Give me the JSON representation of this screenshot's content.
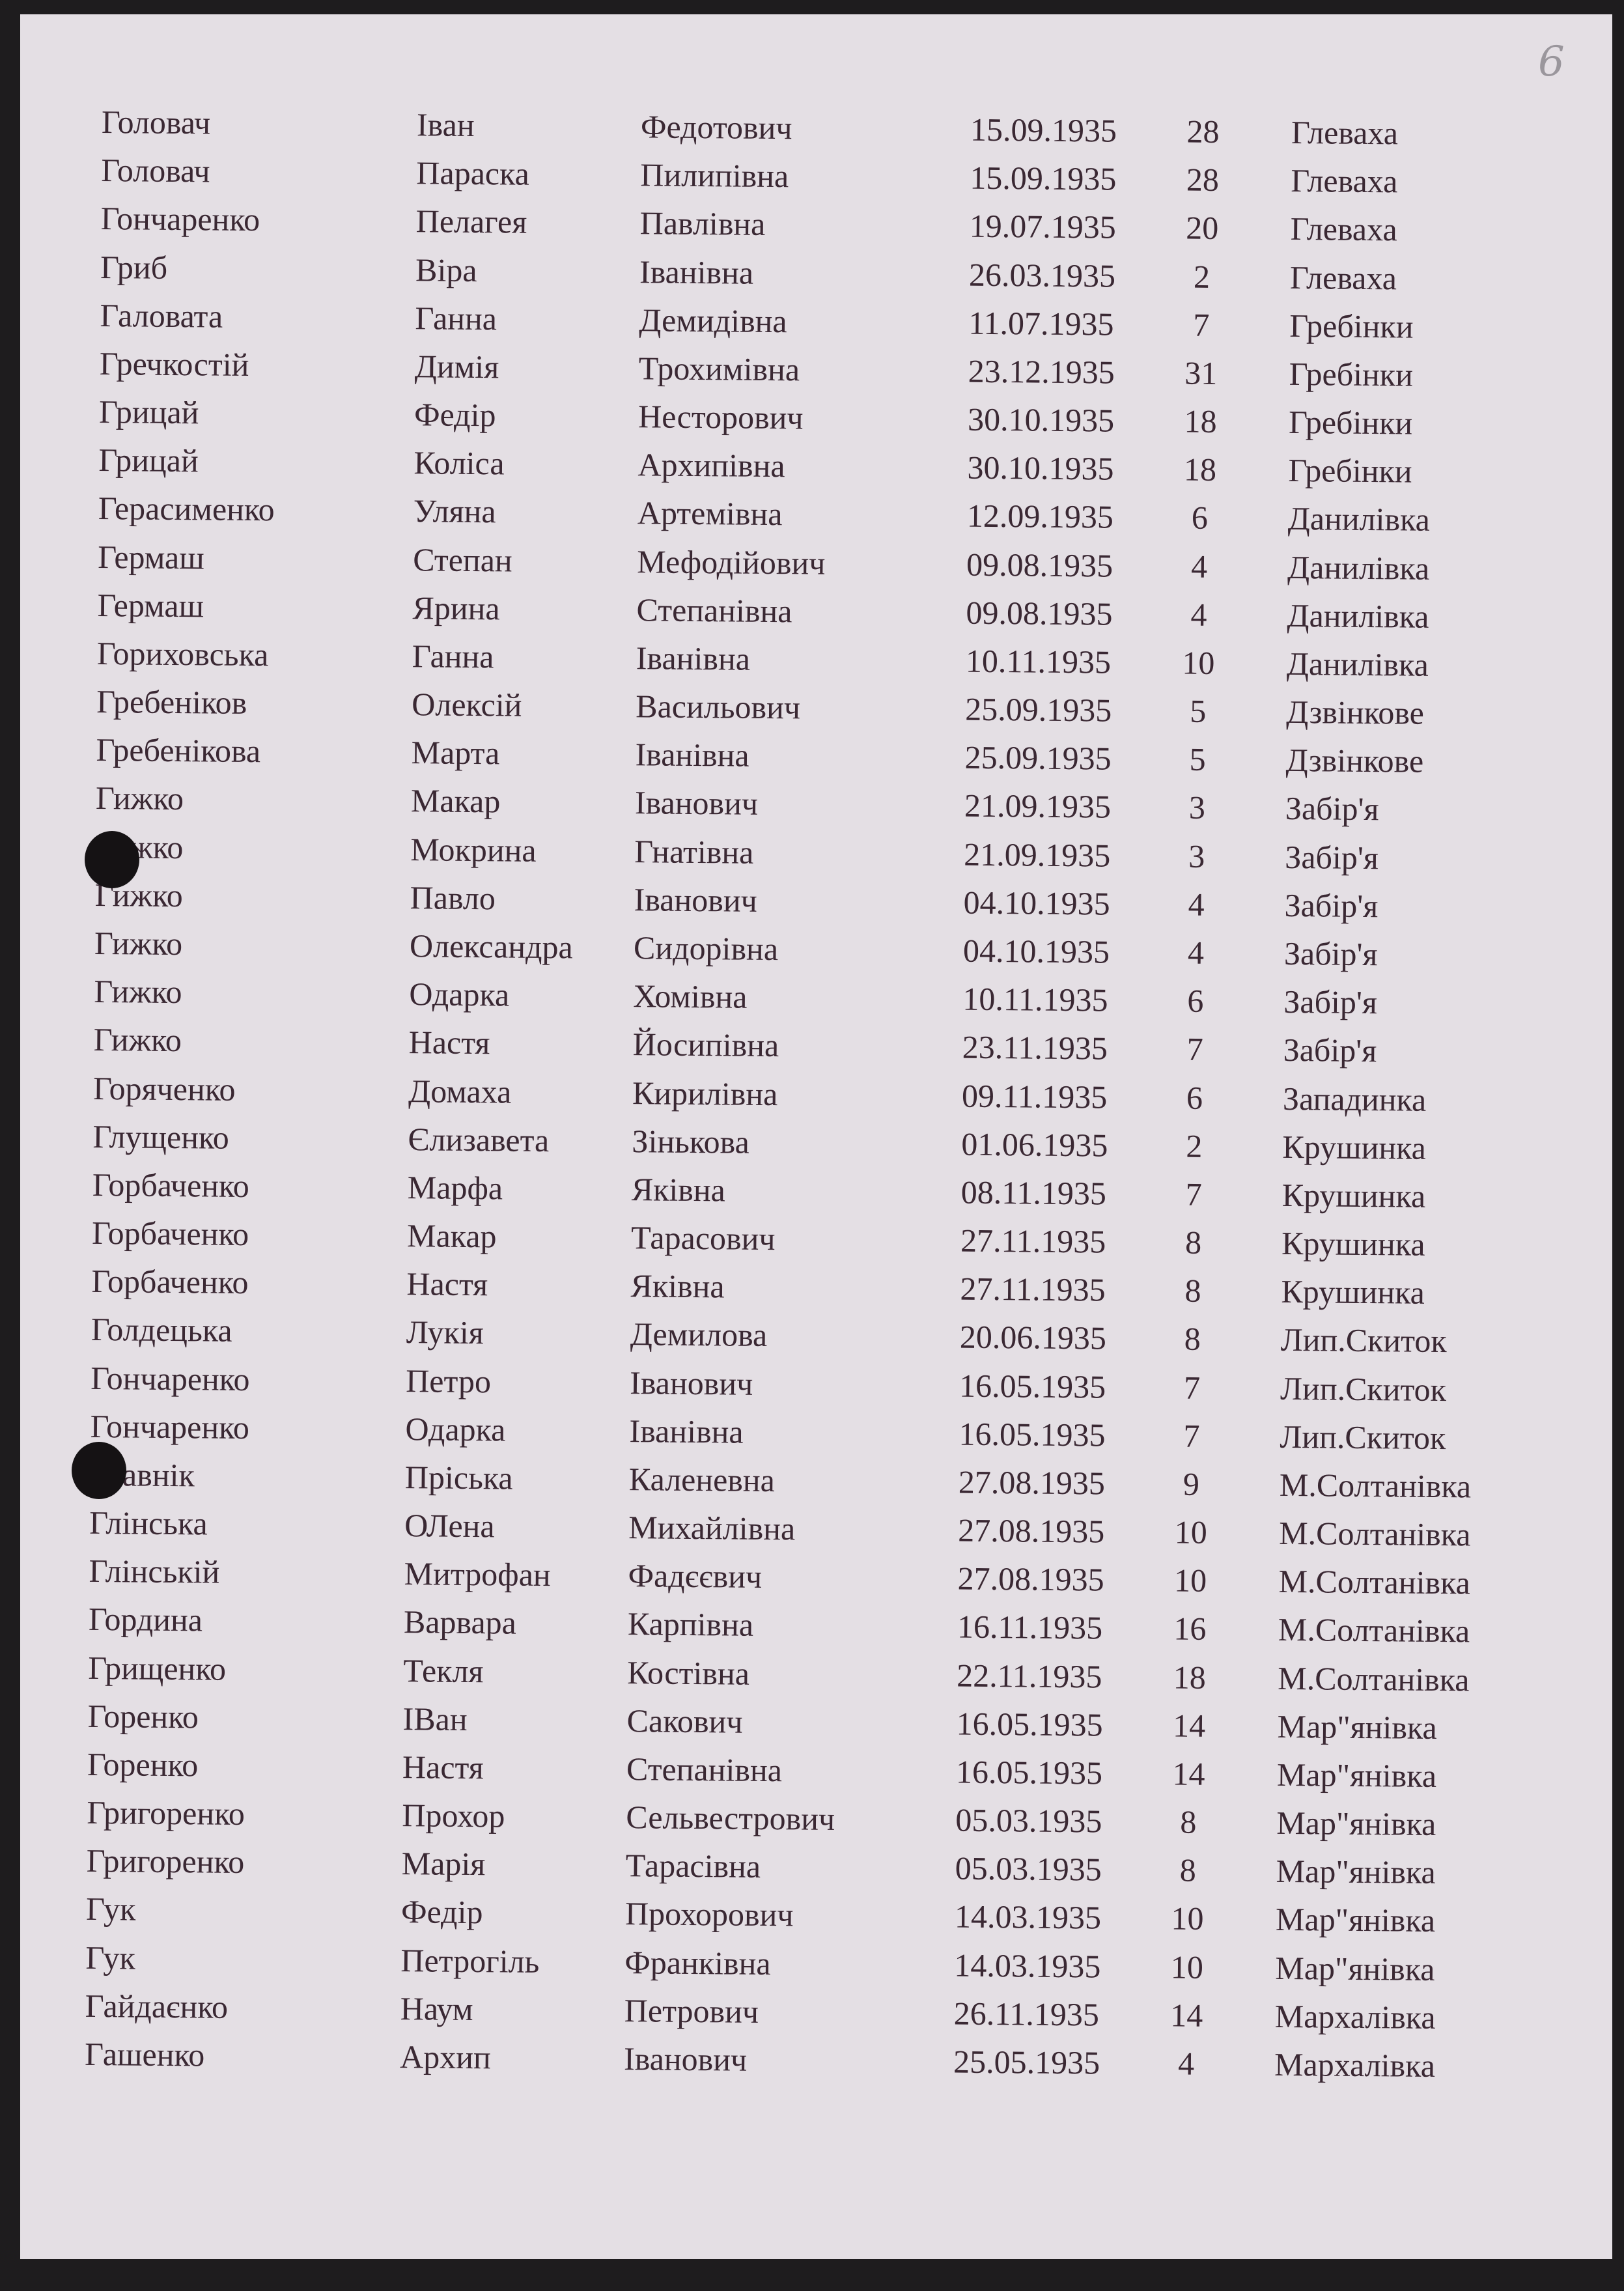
{
  "page_number": "6",
  "rows": [
    [
      "Головач",
      "Іван",
      "Федотович",
      "15.09.1935",
      "28",
      "Глеваха"
    ],
    [
      "Головач",
      "Параска",
      "Пилипівна",
      "15.09.1935",
      "28",
      "Глеваха"
    ],
    [
      "Гончаренко",
      "Пелагея",
      "Павлівна",
      "19.07.1935",
      "20",
      "Глеваха"
    ],
    [
      "Гриб",
      "Віра",
      "Іванівна",
      "26.03.1935",
      "2",
      "Глеваха"
    ],
    [
      "Галовата",
      "Ганна",
      "Демидівна",
      "11.07.1935",
      "7",
      "Гребінки"
    ],
    [
      "Гречкостій",
      "Димія",
      "Трохимівна",
      "23.12.1935",
      "31",
      "Гребінки"
    ],
    [
      "Грицай",
      "Федір",
      "Несторович",
      "30.10.1935",
      "18",
      "Гребінки"
    ],
    [
      "Грицай",
      "Коліса",
      "Архипівна",
      "30.10.1935",
      "18",
      "Гребінки"
    ],
    [
      "Герасименко",
      "Уляна",
      "Артемівна",
      "12.09.1935",
      "6",
      "Данилівка"
    ],
    [
      "Гермаш",
      "Степан",
      "Мефодійович",
      "09.08.1935",
      "4",
      "Данилівка"
    ],
    [
      "Гермаш",
      "Ярина",
      "Степанівна",
      "09.08.1935",
      "4",
      "Данилівка"
    ],
    [
      "Гориховська",
      "Ганна",
      "Іванівна",
      "10.11.1935",
      "10",
      "Данилівка"
    ],
    [
      "Гребеніков",
      "Олексій",
      "Васильович",
      "25.09.1935",
      "5",
      "Дзвінкове"
    ],
    [
      "Гребенікова",
      "Марта",
      "Іванівна",
      "25.09.1935",
      "5",
      "Дзвінкове"
    ],
    [
      "Гижко",
      "Макар",
      "Іванович",
      "21.09.1935",
      "3",
      "Забір'я"
    ],
    [
      "Гижко",
      "Мокрина",
      "Гнатівна",
      "21.09.1935",
      "3",
      "Забір'я"
    ],
    [
      "Гижко",
      "Павло",
      "Іванович",
      "04.10.1935",
      "4",
      "Забір'я"
    ],
    [
      "Гижко",
      "Олександра",
      "Сидорівна",
      "04.10.1935",
      "4",
      "Забір'я"
    ],
    [
      "Гижко",
      "Одарка",
      "Хомівна",
      "10.11.1935",
      "6",
      "Забір'я"
    ],
    [
      "Гижко",
      "Настя",
      "Йосипівна",
      "23.11.1935",
      "7",
      "Забір'я"
    ],
    [
      "Горяченко",
      "Домаха",
      "Кирилівна",
      "09.11.1935",
      "6",
      "Западинка"
    ],
    [
      "Глущенко",
      "Єлизавета",
      "Зінькова",
      "01.06.1935",
      "2",
      "Крушинка"
    ],
    [
      "Горбаченко",
      "Марфа",
      "Яківна",
      "08.11.1935",
      "7",
      "Крушинка"
    ],
    [
      "Горбаченко",
      "Макар",
      "Тарасович",
      "27.11.1935",
      "8",
      "Крушинка"
    ],
    [
      "Горбаченко",
      "Настя",
      "Яківна",
      "27.11.1935",
      "8",
      "Крушинка"
    ],
    [
      "Голдецька",
      "Лукія",
      "Демилова",
      "20.06.1935",
      "8",
      "Лип.Скиток"
    ],
    [
      "Гончаренко",
      "Петро",
      "Іванович",
      "16.05.1935",
      "7",
      "Лип.Скиток"
    ],
    [
      "Гончаренко",
      "Одарка",
      "Іванівна",
      "16.05.1935",
      "7",
      "Лип.Скиток"
    ],
    [
      "Главнік",
      "Пріська",
      "Каленевна",
      "27.08.1935",
      "9",
      "М.Солтанівка"
    ],
    [
      "Глінська",
      "ОЛена",
      "Михайлівна",
      "27.08.1935",
      "10",
      "М.Солтанівка"
    ],
    [
      "Глінській",
      "Митрофан",
      "Фадєєвич",
      "27.08.1935",
      "10",
      "М.Солтанівка"
    ],
    [
      "Гордина",
      "Варвара",
      "Карпівна",
      "16.11.1935",
      "16",
      "М.Солтанівка"
    ],
    [
      "Грищенко",
      "Текля",
      "Костівна",
      "22.11.1935",
      "18",
      "М.Солтанівка"
    ],
    [
      "Горенко",
      "ІВан",
      "Сакович",
      "16.05.1935",
      "14",
      "Мар\"янівка"
    ],
    [
      "Горенко",
      "Настя",
      "Степанівна",
      "16.05.1935",
      "14",
      "Мар\"янівка"
    ],
    [
      "Григоренко",
      "Прохор",
      "Сельвестрович",
      "05.03.1935",
      "8",
      "Мар\"янівка"
    ],
    [
      "Григоренко",
      "Марія",
      "Тарасівна",
      "05.03.1935",
      "8",
      "Мар\"янівка"
    ],
    [
      "Гук",
      "Федір",
      "Прохорович",
      "14.03.1935",
      "10",
      "Мар\"янівка"
    ],
    [
      "Гук",
      "Петрогіль",
      "Франківна",
      "14.03.1935",
      "10",
      "Мар\"янівка"
    ],
    [
      "Гайдаєнко",
      "Наум",
      "Петрович",
      "26.11.1935",
      "14",
      "Мархалівка"
    ],
    [
      "Гашенко",
      "Архип",
      "Іванович",
      "25.05.1935",
      "4",
      "Мархалівка"
    ]
  ]
}
